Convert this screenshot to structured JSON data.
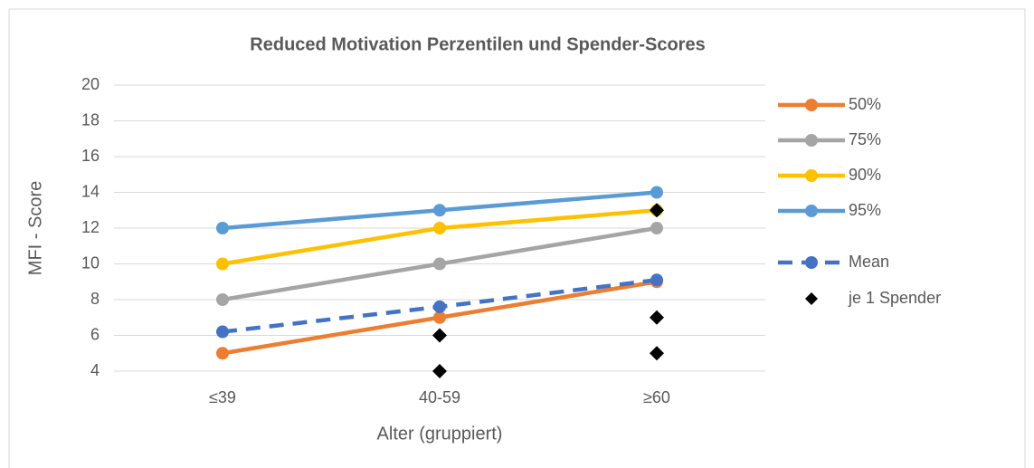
{
  "chart_data": {
    "type": "line",
    "title": "Reduced Motivation Perzentilen und Spender-Scores",
    "x_label": "Alter (gruppiert)",
    "y_label": "MFI - Score",
    "categories": [
      "≤39",
      "40-59",
      "≥60"
    ],
    "ylim": [
      4,
      20
    ],
    "yticks": [
      4,
      6,
      8,
      10,
      12,
      14,
      16,
      18,
      20
    ],
    "grid": true,
    "legend": "right",
    "series": [
      {
        "name": "50%",
        "color": "#ED7D31",
        "values": [
          5,
          7,
          9
        ]
      },
      {
        "name": "75%",
        "color": "#A5A5A5",
        "values": [
          8,
          10,
          12
        ]
      },
      {
        "name": "90%",
        "color": "#FFC000",
        "values": [
          10,
          12,
          13
        ]
      },
      {
        "name": "95%",
        "color": "#5B9BD5",
        "values": [
          12,
          13,
          14
        ]
      },
      {
        "name": "Mean",
        "color": "#4472C4",
        "dashed": true,
        "values": [
          6.2,
          7.6,
          9.1
        ]
      },
      {
        "name": "je 1 Spender",
        "color": "#000000",
        "type": "scatter",
        "marker": "diamond",
        "x": [
          "40-59",
          "40-59",
          "≥60",
          "≥60",
          "≥60"
        ],
        "values": [
          6,
          4,
          13,
          7,
          5
        ]
      }
    ]
  }
}
